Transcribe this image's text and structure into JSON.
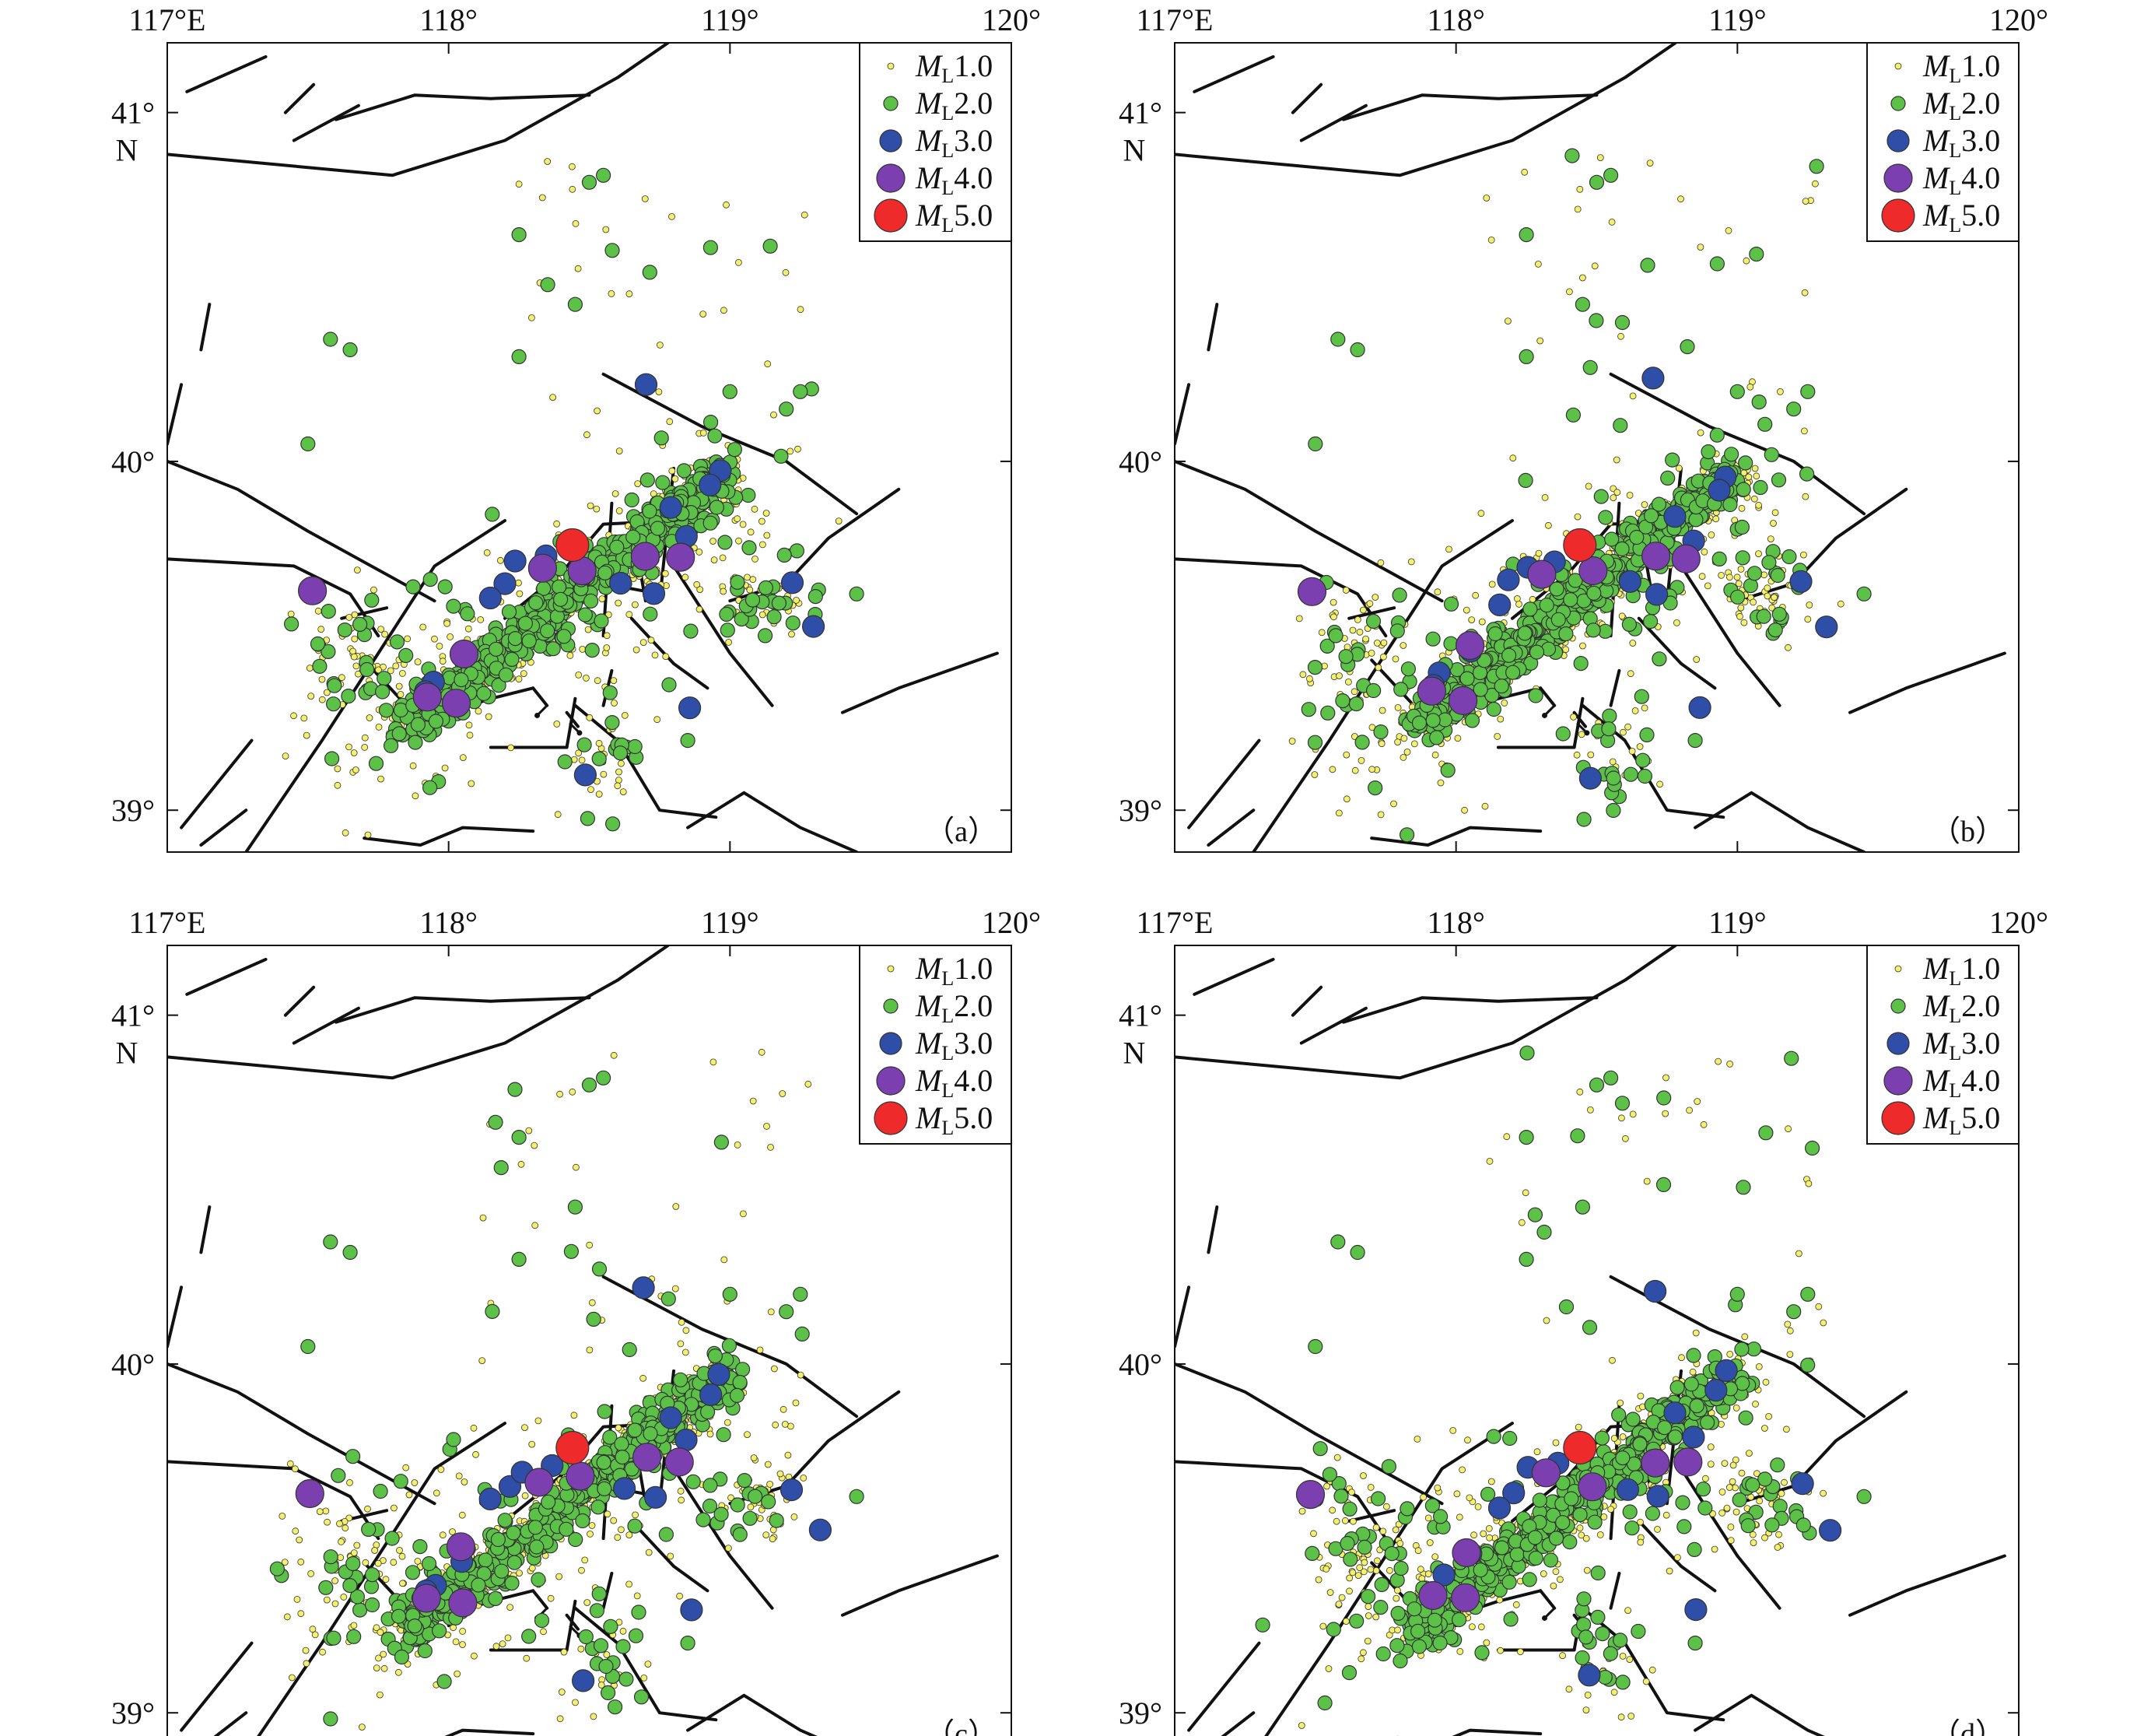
{
  "figure": {
    "panels": [
      {
        "id": "a",
        "label": "（a）",
        "variant": 0
      },
      {
        "id": "b",
        "label": "（b）",
        "variant": 1
      },
      {
        "id": "c",
        "label": "（c）",
        "variant": 2
      },
      {
        "id": "d",
        "label": "（d）",
        "variant": 3
      }
    ],
    "x_ticks": [
      {
        "value": 117,
        "label": "117°E"
      },
      {
        "value": 118,
        "label": "118°"
      },
      {
        "value": 119,
        "label": "119°"
      },
      {
        "value": 120,
        "label": "120°"
      }
    ],
    "y_ticks": [
      {
        "value": 41,
        "label": "41°",
        "sublabel": "N"
      },
      {
        "value": 40,
        "label": "40°",
        "sublabel": ""
      },
      {
        "value": 39,
        "label": "39°",
        "sublabel": ""
      }
    ],
    "legend": [
      {
        "prefix": "M",
        "sub": "L",
        "mag": "1.0",
        "color": "#f5f06a",
        "size": "small"
      },
      {
        "prefix": "M",
        "sub": "L",
        "mag": "2.0",
        "color": "#5cc247",
        "size": "medium"
      },
      {
        "prefix": "M",
        "sub": "L",
        "mag": "3.0",
        "color": "#2e4ea8",
        "size": "large"
      },
      {
        "prefix": "M",
        "sub": "L",
        "mag": "4.0",
        "color": "#7b3fb0",
        "size": "larger"
      },
      {
        "prefix": "M",
        "sub": "L",
        "mag": "5.0",
        "color": "#ee2a2a",
        "size": "largest"
      }
    ],
    "map_extent": {
      "lon": [
        117,
        120
      ],
      "lat": [
        38.88,
        41.2
      ]
    }
  }
}
